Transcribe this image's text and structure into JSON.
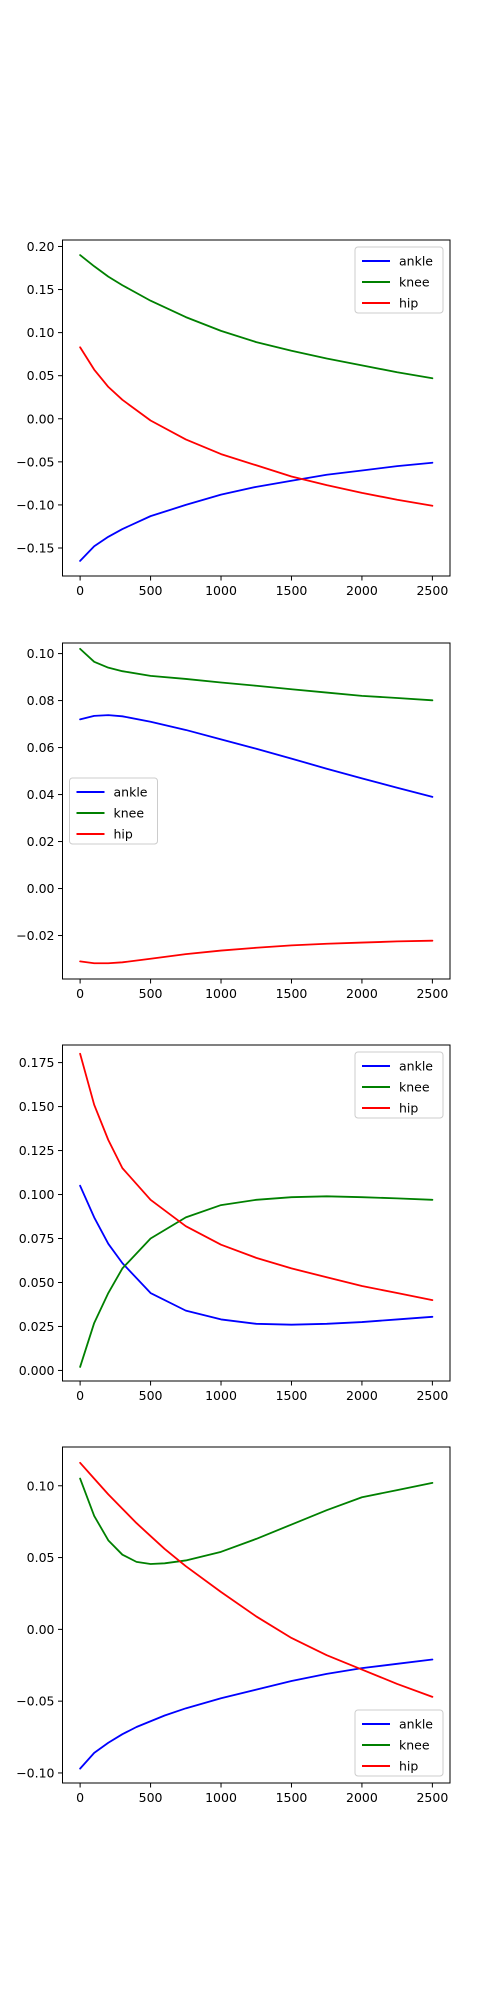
{
  "chart_data": [
    {
      "type": "line",
      "legend_position": "upper-right",
      "xlim": [
        -125,
        2625
      ],
      "ylim": [
        -0.1825,
        0.2075
      ],
      "xticks": [
        0,
        500,
        1000,
        1500,
        2000,
        2500
      ],
      "yticks": [
        -0.15,
        -0.1,
        -0.05,
        0.0,
        0.05,
        0.1,
        0.15,
        0.2
      ],
      "ytick_labels": [
        "−0.15",
        "−0.10",
        "−0.05",
        "0.00",
        "0.05",
        "0.10",
        "0.15",
        "0.20"
      ],
      "x": [
        0,
        100,
        200,
        300,
        500,
        750,
        1000,
        1250,
        1500,
        1750,
        2000,
        2250,
        2500
      ],
      "series": [
        {
          "name": "ankle",
          "color": "#0000ff",
          "values": [
            -0.165,
            -0.148,
            -0.137,
            -0.128,
            -0.113,
            -0.1,
            -0.088,
            -0.079,
            -0.072,
            -0.065,
            -0.06,
            -0.055,
            -0.051
          ]
        },
        {
          "name": "knee",
          "color": "#008000",
          "values": [
            0.19,
            0.177,
            0.165,
            0.155,
            0.137,
            0.118,
            0.102,
            0.089,
            0.079,
            0.07,
            0.062,
            0.054,
            0.047
          ]
        },
        {
          "name": "hip",
          "color": "#ff0000",
          "values": [
            0.083,
            0.057,
            0.037,
            0.022,
            -0.002,
            -0.024,
            -0.041,
            -0.054,
            -0.067,
            -0.077,
            -0.086,
            -0.094,
            -0.101
          ]
        }
      ]
    },
    {
      "type": "line",
      "legend_position": "center-left",
      "xlim": [
        -125,
        2625
      ],
      "ylim": [
        -0.0385,
        0.1045
      ],
      "xticks": [
        0,
        500,
        1000,
        1500,
        2000,
        2500
      ],
      "yticks": [
        -0.02,
        0.0,
        0.02,
        0.04,
        0.06,
        0.08,
        0.1
      ],
      "ytick_labels": [
        "−0.02",
        "0.00",
        "0.02",
        "0.04",
        "0.06",
        "0.08",
        "0.10"
      ],
      "x": [
        0,
        100,
        200,
        300,
        500,
        750,
        1000,
        1250,
        1500,
        1750,
        2000,
        2250,
        2500
      ],
      "series": [
        {
          "name": "ankle",
          "color": "#0000ff",
          "values": [
            0.072,
            0.0735,
            0.0738,
            0.0733,
            0.071,
            0.0675,
            0.0635,
            0.0595,
            0.0553,
            0.051,
            0.0469,
            0.0429,
            0.039
          ]
        },
        {
          "name": "knee",
          "color": "#008000",
          "values": [
            0.102,
            0.0965,
            0.094,
            0.0925,
            0.0905,
            0.0892,
            0.0877,
            0.0863,
            0.0848,
            0.0834,
            0.082,
            0.0811,
            0.0801
          ]
        },
        {
          "name": "hip",
          "color": "#ff0000",
          "values": [
            -0.031,
            -0.0318,
            -0.0318,
            -0.0314,
            -0.0299,
            -0.0279,
            -0.0264,
            -0.0252,
            -0.0242,
            -0.0235,
            -0.023,
            -0.0225,
            -0.0222
          ]
        }
      ]
    },
    {
      "type": "line",
      "legend_position": "upper-right",
      "xlim": [
        -125,
        2625
      ],
      "ylim": [
        -0.006,
        0.185
      ],
      "xticks": [
        0,
        500,
        1000,
        1500,
        2000,
        2500
      ],
      "yticks": [
        0.0,
        0.025,
        0.05,
        0.075,
        0.1,
        0.125,
        0.15,
        0.175
      ],
      "ytick_labels": [
        "0.000",
        "0.025",
        "0.050",
        "0.075",
        "0.100",
        "0.125",
        "0.150",
        "0.175"
      ],
      "x": [
        0,
        100,
        200,
        300,
        500,
        750,
        1000,
        1250,
        1500,
        1750,
        2000,
        2250,
        2500
      ],
      "series": [
        {
          "name": "ankle",
          "color": "#0000ff",
          "values": [
            0.105,
            0.087,
            0.072,
            0.061,
            0.044,
            0.034,
            0.029,
            0.0265,
            0.026,
            0.0265,
            0.0275,
            0.029,
            0.0305
          ]
        },
        {
          "name": "knee",
          "color": "#008000",
          "values": [
            0.002,
            0.027,
            0.044,
            0.058,
            0.075,
            0.087,
            0.094,
            0.097,
            0.0985,
            0.099,
            0.0985,
            0.0978,
            0.097
          ]
        },
        {
          "name": "hip",
          "color": "#ff0000",
          "values": [
            0.18,
            0.151,
            0.131,
            0.115,
            0.097,
            0.082,
            0.0715,
            0.064,
            0.058,
            0.053,
            0.048,
            0.044,
            0.04
          ]
        }
      ]
    },
    {
      "type": "line",
      "legend_position": "lower-right",
      "xlim": [
        -125,
        2625
      ],
      "ylim": [
        -0.107,
        0.127
      ],
      "xticks": [
        0,
        500,
        1000,
        1500,
        2000,
        2500
      ],
      "yticks": [
        -0.1,
        -0.05,
        0.0,
        0.05,
        0.1
      ],
      "ytick_labels": [
        "−0.10",
        "−0.05",
        "0.00",
        "0.05",
        "0.10"
      ],
      "x": [
        0,
        100,
        200,
        300,
        400,
        500,
        600,
        750,
        1000,
        1250,
        1500,
        1750,
        2000,
        2250,
        2500
      ],
      "series": [
        {
          "name": "ankle",
          "color": "#0000ff",
          "values": [
            -0.097,
            -0.086,
            -0.079,
            -0.073,
            -0.068,
            -0.064,
            -0.06,
            -0.055,
            -0.048,
            -0.042,
            -0.036,
            -0.031,
            -0.027,
            -0.024,
            -0.021
          ]
        },
        {
          "name": "knee",
          "color": "#008000",
          "values": [
            0.105,
            0.079,
            0.062,
            0.052,
            0.047,
            0.0455,
            0.046,
            0.048,
            0.054,
            0.063,
            0.073,
            0.083,
            0.092,
            0.097,
            0.102
          ]
        },
        {
          "name": "hip",
          "color": "#ff0000",
          "values": [
            0.116,
            0.105,
            0.094,
            0.084,
            0.074,
            0.065,
            0.056,
            0.044,
            0.026,
            0.009,
            -0.006,
            -0.018,
            -0.028,
            -0.038,
            -0.047
          ]
        }
      ]
    }
  ]
}
